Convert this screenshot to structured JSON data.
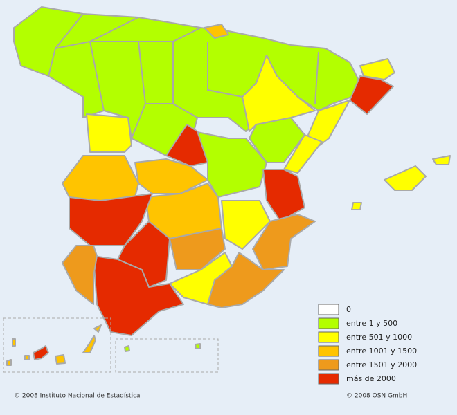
{
  "legend": {
    "items": [
      {
        "label": "0",
        "color": "#ffffff"
      },
      {
        "label": "entre 1 y 500",
        "color": "#b3ff00"
      },
      {
        "label": "entre 501 y 1000",
        "color": "#ffff00"
      },
      {
        "label": "entre 1001 y 1500",
        "color": "#ffc400"
      },
      {
        "label": "entre 1501 y 2000",
        "color": "#ee9a1c"
      },
      {
        "label": "más de 2000",
        "color": "#e52a00"
      }
    ]
  },
  "footer": {
    "left": "© 2008 Instituto Nacional de Estadística",
    "right": "© 2008 OSN GmbH"
  }
}
